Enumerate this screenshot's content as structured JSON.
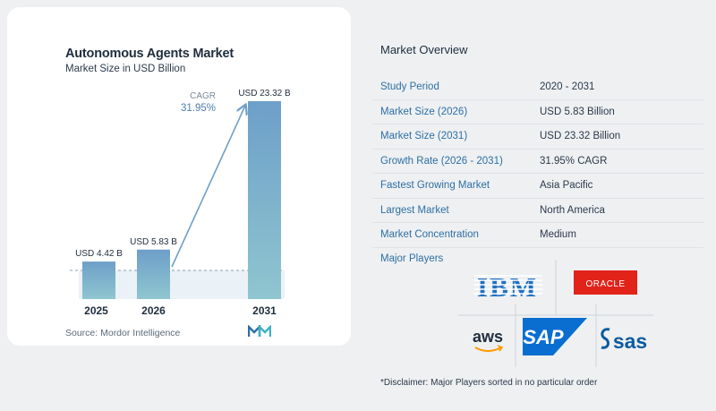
{
  "chart_data": {
    "type": "bar",
    "title": "Autonomous Agents Market",
    "subtitle": "Market Size in USD Billion",
    "categories": [
      "2025",
      "2026",
      "2031"
    ],
    "values": [
      4.42,
      5.83,
      23.32
    ],
    "data_labels": [
      "USD 4.42 B",
      "USD 5.83 B",
      "USD 23.32 B"
    ],
    "annotation": {
      "label": "CAGR",
      "value": "31.95%"
    },
    "source": "Source:  Mordor Intelligence",
    "colors": {
      "bar_top": "#6d9fc9",
      "bar_bottom": "#8fc6cf",
      "arrow": "#6d9fc9",
      "baseline": "#cfe0ea"
    }
  },
  "overview": {
    "title": "Market Overview",
    "rows": [
      {
        "key": "Study Period",
        "value": "2020 - 2031"
      },
      {
        "key": "Market Size (2026)",
        "value": "USD 5.83 Billion"
      },
      {
        "key": "Market Size (2031)",
        "value": "USD 23.32 Billion"
      },
      {
        "key": "Growth Rate (2026 - 2031)",
        "value": "31.95% CAGR"
      },
      {
        "key": "Fastest Growing Market",
        "value": "Asia Pacific"
      },
      {
        "key": "Largest Market",
        "value": "North America"
      },
      {
        "key": "Market Concentration",
        "value": "Medium"
      }
    ]
  },
  "players": {
    "title": "Major Players",
    "logos": [
      "IBM",
      "ORACLE",
      "aws",
      "SAP",
      "sas"
    ],
    "colors": {
      "ibm": "#1f70c1",
      "oracle": "#e2231a",
      "sap": "#0a6ed1",
      "sas": "#0b5b9f",
      "aws": "#232f3e",
      "aws_smile": "#ff9900"
    }
  },
  "disclaimer": "*Disclaimer: Major Players sorted in no particular order"
}
